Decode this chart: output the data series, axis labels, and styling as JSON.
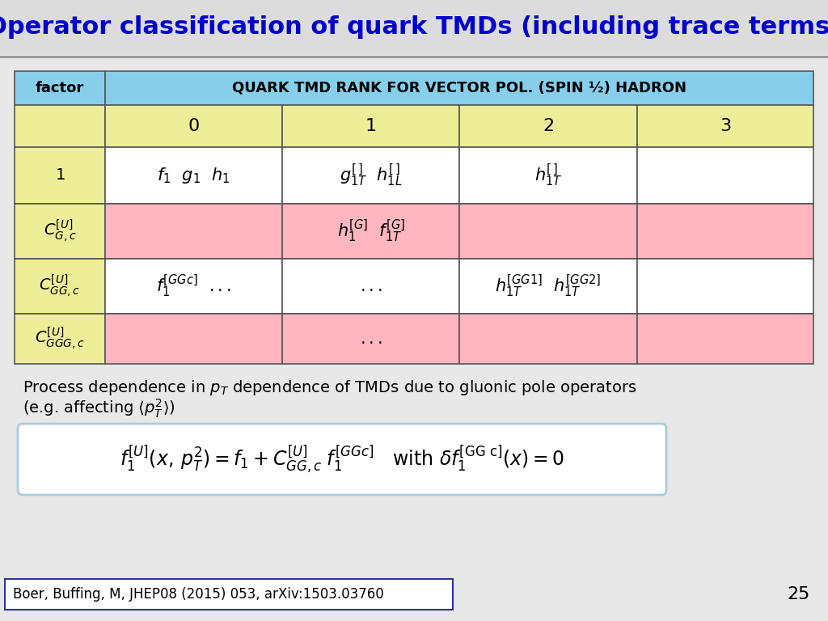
{
  "title": "Operator classification of quark TMDs (including trace terms)",
  "title_color": "#0000CC",
  "bg_color": "#E8E8E8",
  "table_header_bg": "#87CEEB",
  "table_rank_bg": "#EEEE99",
  "table_white_bg": "#FFFFFF",
  "table_pink_bg": "#FFB6C1",
  "citation": "Boer, Buffing, M, JHEP08 (2015) 053, arXiv:1503.03760",
  "slide_number": "25"
}
